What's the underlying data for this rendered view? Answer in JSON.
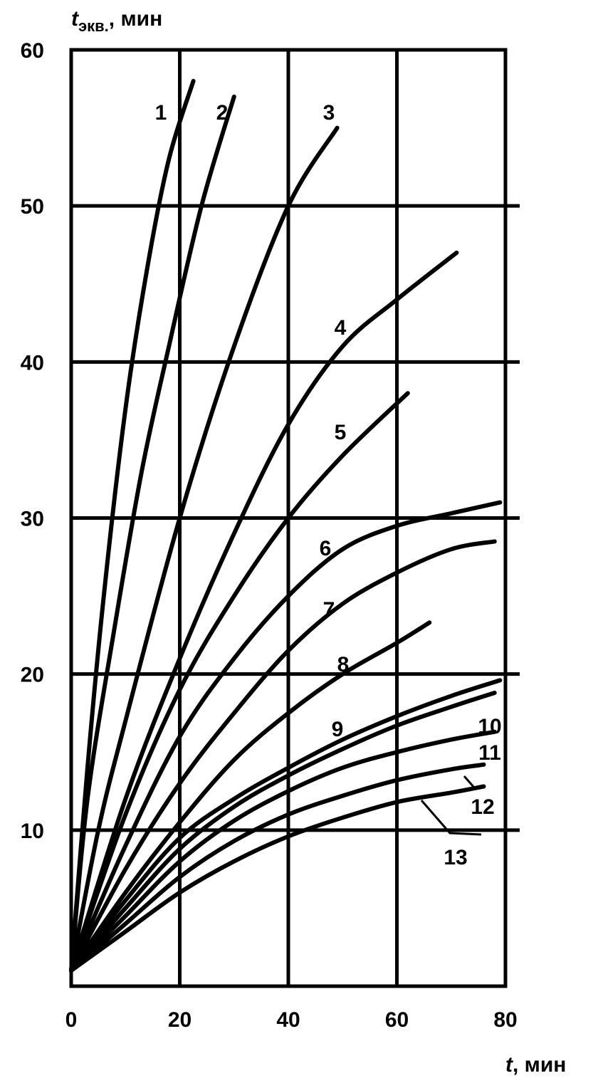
{
  "chart_data": {
    "type": "line",
    "title": "",
    "xlabel": {
      "symbol": "t",
      "unit": ", мин"
    },
    "ylabel": {
      "symbol": "t",
      "subscript": "экв.",
      "unit": ", мин"
    },
    "xlim": [
      0,
      80
    ],
    "ylim": [
      0,
      60
    ],
    "x_ticks": [
      "0",
      "20",
      "40",
      "60",
      "80"
    ],
    "y_ticks": [
      "10",
      "20",
      "30",
      "40",
      "50",
      "60"
    ],
    "grid": true,
    "series": [
      {
        "name": "1",
        "x": [
          0,
          3,
          6,
          10,
          14,
          18,
          22.5
        ],
        "y": [
          1,
          14,
          25,
          37,
          46,
          53,
          58
        ]
      },
      {
        "name": "2",
        "x": [
          0,
          3,
          8,
          13,
          18,
          24,
          30
        ],
        "y": [
          1,
          12,
          23,
          33,
          41,
          50,
          57
        ]
      },
      {
        "name": "3",
        "x": [
          0,
          5,
          10,
          20,
          30,
          40,
          49
        ],
        "y": [
          1,
          10,
          17,
          30,
          41,
          50,
          55
        ]
      },
      {
        "name": "4",
        "x": [
          0,
          10,
          20,
          30,
          40,
          50,
          60,
          71
        ],
        "y": [
          1,
          12,
          21,
          29,
          36,
          41,
          44,
          47
        ]
      },
      {
        "name": "5",
        "x": [
          0,
          10,
          20,
          30,
          40,
          50,
          62
        ],
        "y": [
          1,
          11,
          19,
          25,
          30,
          34,
          38
        ]
      },
      {
        "name": "6",
        "x": [
          0,
          10,
          20,
          30,
          40,
          50,
          60,
          70,
          79
        ],
        "y": [
          1,
          9,
          16,
          21,
          25,
          28,
          29.5,
          30.3,
          31
        ]
      },
      {
        "name": "7",
        "x": [
          0,
          10,
          20,
          30,
          40,
          50,
          60,
          70,
          78
        ],
        "y": [
          1,
          7.5,
          13,
          17.5,
          21.5,
          24.5,
          26.5,
          28,
          28.5
        ]
      },
      {
        "name": "8",
        "x": [
          0,
          10,
          20,
          30,
          40,
          50,
          60,
          66
        ],
        "y": [
          1,
          6,
          10.5,
          14.5,
          17.5,
          20,
          22,
          23.3
        ]
      },
      {
        "name": "9",
        "x": [
          0,
          10,
          20,
          30,
          40,
          50,
          60,
          70,
          79
        ],
        "y": [
          1,
          5.5,
          9.5,
          12,
          14,
          15.8,
          17.3,
          18.6,
          19.6
        ]
      },
      {
        "name": "10",
        "x": [
          0,
          10,
          20,
          30,
          40,
          50,
          60,
          70,
          78
        ],
        "y": [
          1,
          5,
          8.8,
          11.5,
          13.5,
          15.2,
          16.7,
          17.9,
          18.8
        ]
      },
      {
        "name": "11",
        "x": [
          0,
          10,
          20,
          30,
          40,
          50,
          60,
          70,
          78
        ],
        "y": [
          1,
          4.5,
          8,
          10.6,
          12.5,
          14,
          15,
          15.8,
          16.3
        ]
      },
      {
        "name": "12",
        "x": [
          0,
          10,
          20,
          30,
          40,
          50,
          60,
          70,
          76
        ],
        "y": [
          1,
          4,
          7,
          9.3,
          11,
          12.2,
          13.2,
          13.9,
          14.2
        ]
      },
      {
        "name": "13",
        "x": [
          0,
          10,
          20,
          30,
          40,
          50,
          60,
          70,
          76
        ],
        "y": [
          1,
          3.5,
          6,
          8,
          9.6,
          10.8,
          11.8,
          12.4,
          12.8
        ]
      }
    ]
  }
}
